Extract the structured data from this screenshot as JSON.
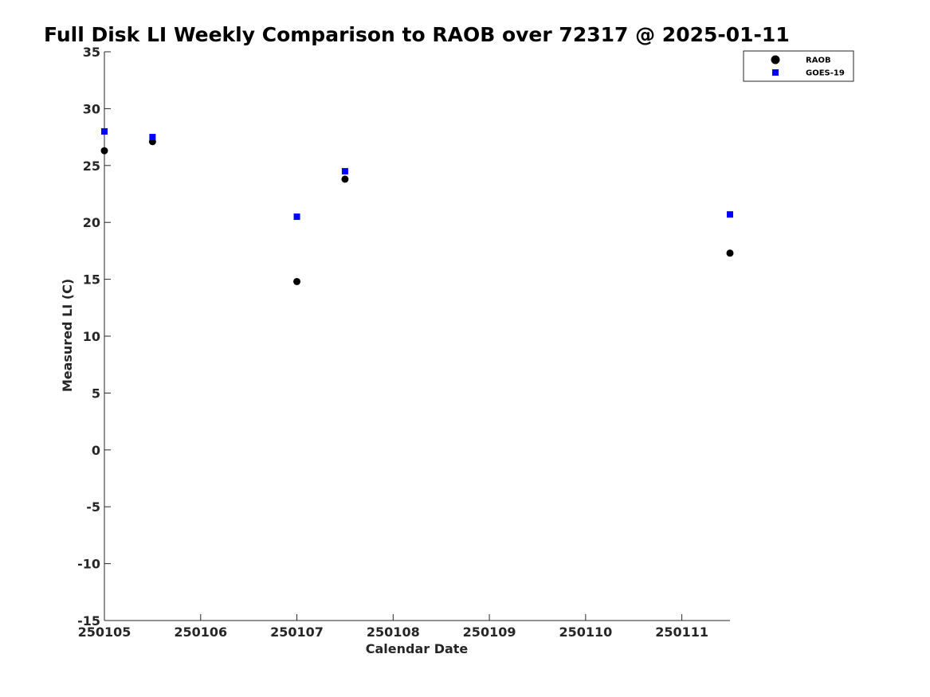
{
  "chart_data": {
    "type": "scatter",
    "title": "Full Disk LI Weekly Comparison to RAOB over 72317 @ 2025-01-11",
    "xlabel": "Calendar Date",
    "ylabel": "Measured LI (C)",
    "x_ticks": [
      "250105",
      "250106",
      "250107",
      "250108",
      "250109",
      "250110",
      "250111"
    ],
    "xlim": [
      "250105",
      "250111.5"
    ],
    "ylim": [
      -15,
      35
    ],
    "y_ticks": [
      "35",
      "30",
      "25",
      "20",
      "15",
      "10",
      "5",
      "0",
      "-5",
      "-10",
      "-15"
    ],
    "grid": false,
    "legend_position": "top-right",
    "series": [
      {
        "name": "RAOB",
        "marker": "circle",
        "color": "#000000",
        "points": [
          {
            "x": "250105.0",
            "y": 26.3
          },
          {
            "x": "250105.5",
            "y": 27.1
          },
          {
            "x": "250107.0",
            "y": 14.8
          },
          {
            "x": "250107.5",
            "y": 23.8
          },
          {
            "x": "250111.5",
            "y": 17.3
          }
        ]
      },
      {
        "name": "GOES-19",
        "marker": "square",
        "color": "#0000ff",
        "points": [
          {
            "x": "250105.0",
            "y": 28.0
          },
          {
            "x": "250105.5",
            "y": 27.5
          },
          {
            "x": "250107.0",
            "y": 20.5
          },
          {
            "x": "250107.5",
            "y": 24.5
          },
          {
            "x": "250111.5",
            "y": 20.7
          }
        ]
      }
    ]
  }
}
